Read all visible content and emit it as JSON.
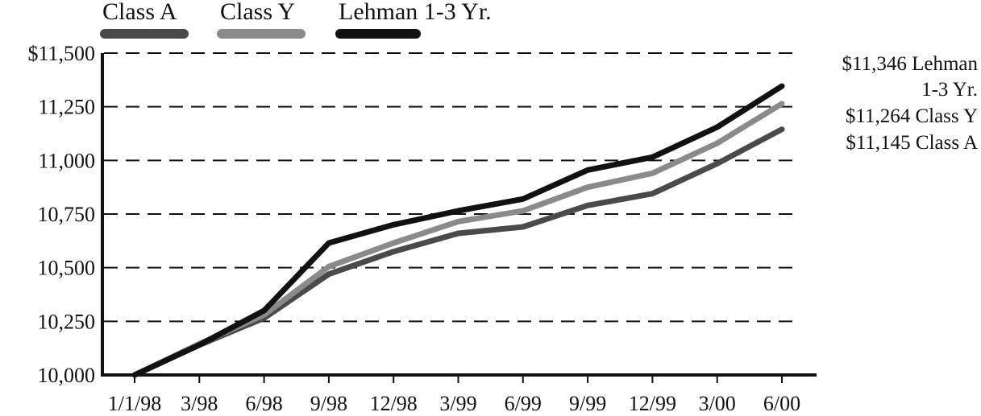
{
  "chart_data": {
    "type": "line",
    "categories": [
      "1/1/98",
      "3/98",
      "6/98",
      "9/98",
      "12/98",
      "3/99",
      "6/99",
      "9/99",
      "12/99",
      "3/00",
      "6/00"
    ],
    "ylim": [
      10000,
      11500
    ],
    "yticks": [
      "10,000",
      "10,250",
      "10,500",
      "10,750",
      "11,000",
      "11,250",
      "$11,500"
    ],
    "ytick_values": [
      10000,
      10250,
      10500,
      10750,
      11000,
      11250,
      11500
    ],
    "grid": "dashed horizontal",
    "legend_position": "top-left",
    "series": [
      {
        "name": "Class A",
        "color": "#4a4a4a",
        "values": [
          10000,
          10140,
          10265,
          10470,
          10575,
          10660,
          10690,
          10790,
          10845,
          10985,
          11145
        ]
      },
      {
        "name": "Class Y",
        "color": "#8a8a8a",
        "values": [
          10000,
          10145,
          10280,
          10505,
          10615,
          10715,
          10765,
          10875,
          10940,
          11080,
          11264
        ]
      },
      {
        "name": "Lehman 1-3 Yr.",
        "color": "#111111",
        "values": [
          10000,
          10140,
          10300,
          10615,
          10700,
          10765,
          10820,
          10955,
          11015,
          11155,
          11346
        ]
      }
    ],
    "end_labels": [
      "$11,346 Lehman",
      "1-3 Yr.",
      "$11,264 Class Y",
      "$11,145 Class A"
    ]
  }
}
